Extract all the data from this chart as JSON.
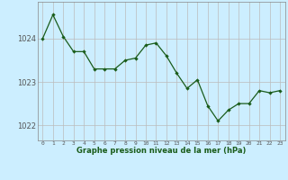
{
  "x": [
    0,
    1,
    2,
    3,
    4,
    5,
    6,
    7,
    8,
    9,
    10,
    11,
    12,
    13,
    14,
    15,
    16,
    17,
    18,
    19,
    20,
    21,
    22,
    23
  ],
  "y": [
    1024.0,
    1024.55,
    1024.05,
    1023.7,
    1023.7,
    1023.3,
    1023.3,
    1023.3,
    1023.5,
    1023.55,
    1023.85,
    1023.9,
    1023.6,
    1023.2,
    1022.85,
    1023.05,
    1022.45,
    1022.1,
    1022.35,
    1022.5,
    1022.5,
    1022.8,
    1022.75,
    1022.8
  ],
  "line_color": "#1a5c1a",
  "marker_color": "#1a5c1a",
  "bg_color": "#cceeff",
  "grid_color": "#bbbbbb",
  "ylabel_ticks": [
    1022,
    1023,
    1024
  ],
  "xlabel": "Graphe pression niveau de la mer (hPa)",
  "xlim": [
    -0.5,
    23.5
  ],
  "ylim": [
    1021.65,
    1024.85
  ],
  "xtick_labels": [
    "0",
    "1",
    "2",
    "3",
    "4",
    "5",
    "6",
    "7",
    "8",
    "9",
    "10",
    "11",
    "12",
    "13",
    "14",
    "15",
    "16",
    "17",
    "18",
    "19",
    "20",
    "21",
    "22",
    "23"
  ]
}
